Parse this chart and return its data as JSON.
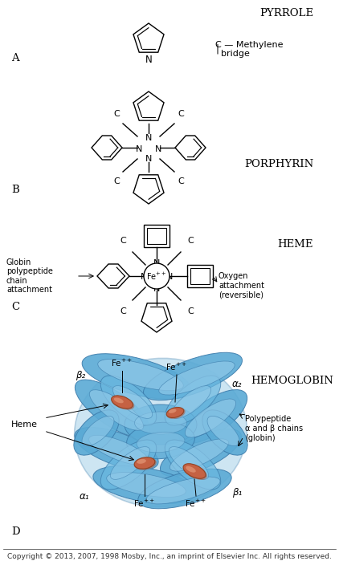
{
  "bg_color": "#ffffff",
  "line_color": "#000000",
  "blue_color": "#5aaad5",
  "blue_light": "#8ec8e8",
  "blue_dark": "#3a7aaa",
  "blue_mid": "#6ab8e0",
  "heme_color": "#c86040",
  "heme_edge": "#904020",
  "section_A": "A",
  "section_B": "B",
  "section_C": "C",
  "section_D": "D",
  "label_pyrrole": "PYRROLE",
  "label_porphyrin": "PORPHYRIN",
  "label_heme": "HEME",
  "label_hemoglobin": "HEMOGLOBIN",
  "label_N": "N",
  "label_C": "C",
  "label_Fe": "Fe",
  "methylene_line1": "C — Methylene",
  "methylene_line2": "bridge",
  "globin_text": "Globin\npolypeptide\nchain\nattachment",
  "oxygen_text": "Oxygen\nattachment\n(reversible)",
  "polypeptide_text": "Polypeptide\nα and β chains\n(globin)",
  "heme_text": "Heme",
  "beta2": "β₂",
  "alpha2": "α₂",
  "alpha1": "α₁",
  "beta1": "β₁",
  "copyright": "Copyright © 2013, 2007, 1998 Mosby, Inc., an imprint of Elsevier Inc. All rights reserved.",
  "fs_main": 8.5,
  "fs_label": 9.5,
  "fs_small": 6.5,
  "fs_annot": 8.0
}
